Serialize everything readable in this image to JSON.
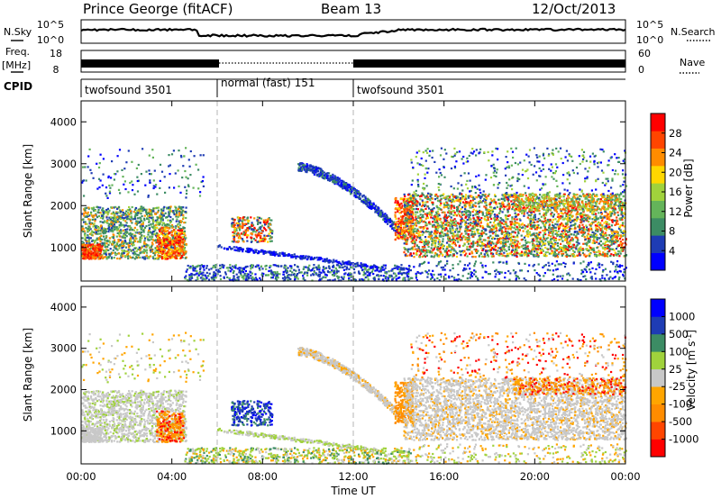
{
  "header": {
    "title": "Prince George (fitACF)",
    "beam": "Beam 13",
    "date": "12/Oct/2013"
  },
  "side_labels": {
    "nsky": "N.Sky",
    "nsearch": "N.Search",
    "freq_line1": "Freq.",
    "freq_line2": "[MHz]",
    "nave": "Nave",
    "cpid": "CPID"
  },
  "noise_panel": {
    "left_ticks": [
      "10^5",
      "10^0"
    ],
    "right_ticks": [
      "10^5",
      "10^0"
    ]
  },
  "freq_panel": {
    "left_ticks": [
      "18",
      "8"
    ],
    "right_ticks": [
      "60",
      "0"
    ]
  },
  "cpid_segments": [
    {
      "label": "twofsound 3501",
      "start_hour": 0,
      "end_hour": 6
    },
    {
      "label": "normal (fast) 151",
      "start_hour": 6,
      "end_hour": 12
    },
    {
      "label": "twofsound 3501",
      "start_hour": 12,
      "end_hour": 24
    }
  ],
  "colors": {
    "power_scale": [
      "#0000ff",
      "#1e3cb4",
      "#3c8c64",
      "#64b45a",
      "#a0d23c",
      "#ffd700",
      "#ff8c00",
      "#ff4500",
      "#ff0000"
    ],
    "velocity_scale": [
      "#ff0000",
      "#ff4500",
      "#ff8c00",
      "#ffa500",
      "#c8c8c8",
      "#a0d23c",
      "#3c8c64",
      "#1e3cb4",
      "#0000ff"
    ]
  },
  "chart_data": [
    {
      "type": "heatmap",
      "title": "",
      "xlabel": "",
      "ylabel": "Slant Range [km]",
      "xlim": [
        0,
        24
      ],
      "ylim": [
        200,
        4500
      ],
      "yticks": [
        "4000",
        "3000",
        "2000",
        "1000"
      ],
      "colorbar_label": "Power [dB]",
      "colorbar_ticks": [
        "28",
        "24",
        "20",
        "16",
        "12",
        "8",
        "4"
      ],
      "scatter_regions": [
        {
          "start_hour": 0.0,
          "end_hour": 4.5,
          "range_min_km": 700,
          "range_max_km": 2000,
          "level": "mixed 4-28 dB"
        },
        {
          "start_hour": 6.5,
          "end_hour": 8.5,
          "range_min_km": 1200,
          "range_max_km": 1800,
          "level": "mixed 4-28 dB"
        },
        {
          "start_hour": 14.0,
          "end_hour": 24.0,
          "range_min_km": 800,
          "range_max_km": 2300,
          "level": "mixed 4-28 dB"
        }
      ]
    },
    {
      "type": "heatmap",
      "title": "",
      "xlabel": "Time UT",
      "ylabel": "Slant Range [km]",
      "xlim": [
        0,
        24
      ],
      "ylim": [
        200,
        4500
      ],
      "xticks": [
        "00:00",
        "04:00",
        "08:00",
        "12:00",
        "16:00",
        "20:00",
        "00:00"
      ],
      "yticks": [
        "4000",
        "3000",
        "2000",
        "1000"
      ],
      "colorbar_label": "Velocity [m s^-1]",
      "colorbar_ticks": [
        "1000",
        "500",
        "100",
        "25",
        "-25",
        "-100",
        "-500",
        "-1000"
      ]
    }
  ]
}
